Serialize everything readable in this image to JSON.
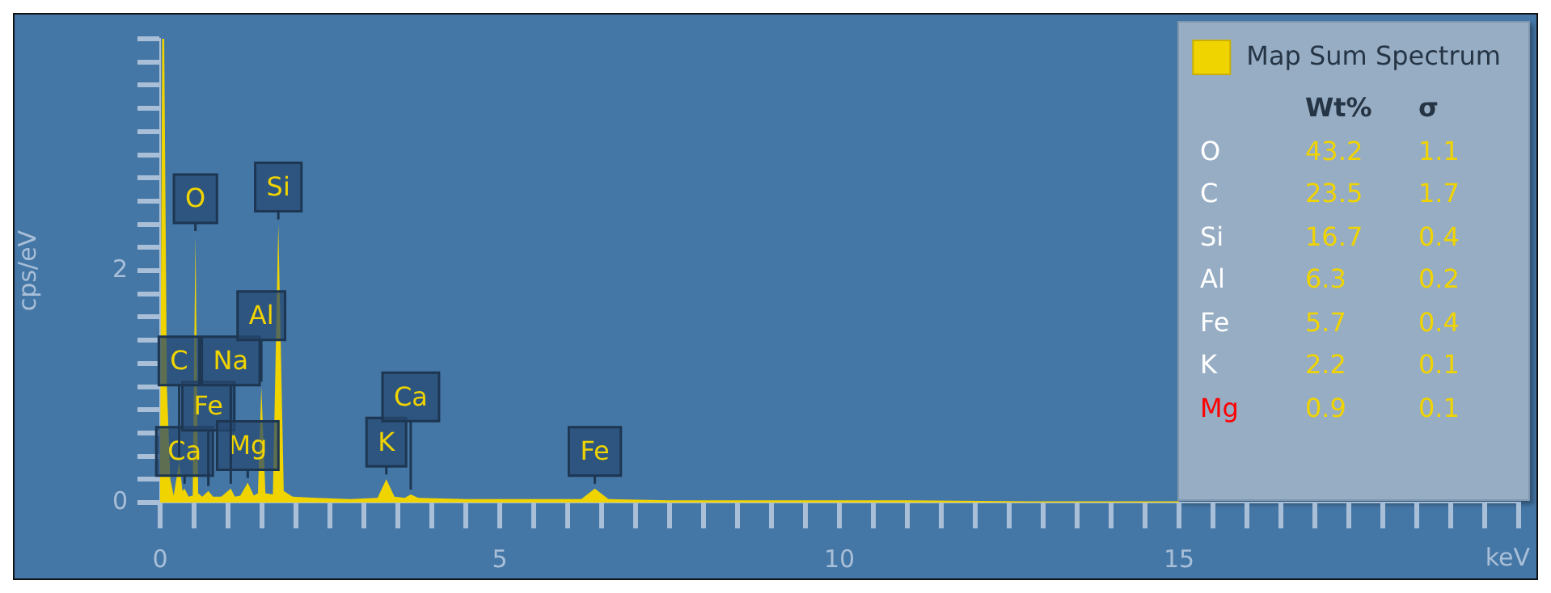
{
  "chart_data": [
    {
      "type": "area",
      "ylabel": "cps/eV",
      "xlabel": "keV",
      "legend": "top right",
      "x": [
        0,
        0.03,
        0.06,
        0.1,
        0.15,
        0.2,
        0.28,
        0.33,
        0.36,
        0.42,
        0.48,
        0.52,
        0.56,
        0.62,
        0.71,
        0.78,
        0.9,
        1.04,
        1.1,
        1.18,
        1.29,
        1.38,
        1.44,
        1.49,
        1.55,
        1.66,
        1.74,
        1.82,
        1.95,
        2.3,
        2.8,
        3.2,
        3.33,
        3.45,
        3.6,
        3.69,
        3.8,
        4.5,
        5.5,
        6.2,
        6.4,
        6.6,
        7.5,
        9,
        11,
        13,
        15
      ],
      "series": [
        {
          "name": "Map Sum Spectrum",
          "color": "#f0d400",
          "values": [
            0.3,
            4.0,
            4.0,
            1.0,
            0.2,
            0.06,
            0.35,
            0.1,
            0.12,
            0.05,
            0.06,
            2.3,
            0.08,
            0.05,
            0.1,
            0.05,
            0.05,
            0.12,
            0.05,
            0.06,
            0.17,
            0.06,
            0.08,
            1.0,
            0.08,
            0.07,
            2.4,
            0.1,
            0.05,
            0.04,
            0.03,
            0.04,
            0.2,
            0.05,
            0.04,
            0.07,
            0.04,
            0.03,
            0.03,
            0.03,
            0.12,
            0.03,
            0.02,
            0.02,
            0.02,
            0.01,
            0.01
          ]
        }
      ],
      "xlim": [
        0,
        20
      ],
      "xticks": [
        0,
        {
          "value": 0.5,
          "label": null
        },
        {
          "value": 1,
          "label": null
        },
        {
          "value": 1.5,
          "label": null
        },
        {
          "value": 2,
          "label": null
        },
        {
          "value": 2.5,
          "label": null
        },
        {
          "value": 3,
          "label": null
        },
        {
          "value": 3.5,
          "label": null
        },
        {
          "value": 4,
          "label": null
        },
        {
          "value": 4.5,
          "label": null
        },
        5,
        {
          "value": 5.5,
          "label": null
        },
        {
          "value": 6,
          "label": null
        },
        {
          "value": 6.5,
          "label": null
        },
        {
          "value": 7,
          "label": null
        },
        {
          "value": 7.5,
          "label": null
        },
        {
          "value": 8,
          "label": null
        },
        {
          "value": 8.5,
          "label": null
        },
        {
          "value": 9,
          "label": null
        },
        {
          "value": 9.5,
          "label": null
        },
        10,
        {
          "value": 10.5,
          "label": null
        },
        {
          "value": 11,
          "label": null
        },
        {
          "value": 11.5,
          "label": null
        },
        {
          "value": 12,
          "label": null
        },
        {
          "value": 12.5,
          "label": null
        },
        {
          "value": 13,
          "label": null
        },
        {
          "value": 13.5,
          "label": null
        },
        {
          "value": 14,
          "label": null
        },
        {
          "value": 14.5,
          "label": null
        },
        15,
        {
          "value": 15.5,
          "label": null
        },
        {
          "value": 16,
          "label": null
        },
        {
          "value": 16.5,
          "label": null
        },
        {
          "value": 17,
          "label": null
        },
        {
          "value": 17.5,
          "label": null
        },
        {
          "value": 18,
          "label": null
        },
        {
          "value": 18.5,
          "label": null
        },
        {
          "value": 19,
          "label": null
        },
        {
          "value": 19.5,
          "label": null
        },
        {
          "value": 20,
          "label": null
        }
      ],
      "ylim": [
        0,
        4
      ],
      "yticks": [
        0,
        {
          "value": 0.2,
          "label": null
        },
        {
          "value": 0.4,
          "label": null
        },
        {
          "value": 0.6,
          "label": null
        },
        {
          "value": 0.8,
          "label": null
        },
        {
          "value": 1,
          "label": null
        },
        {
          "value": 1.2,
          "label": null
        },
        {
          "value": 1.4,
          "label": null
        },
        {
          "value": 1.6,
          "label": null
        },
        {
          "value": 1.8,
          "label": null
        },
        2,
        {
          "value": 2.2,
          "label": null
        },
        {
          "value": 2.4,
          "label": null
        },
        {
          "value": 2.6,
          "label": null
        },
        {
          "value": 2.8,
          "label": null
        },
        {
          "value": 3,
          "label": null
        },
        {
          "value": 3.2,
          "label": null
        },
        {
          "value": 3.4,
          "label": null
        },
        {
          "value": 3.6,
          "label": null
        },
        {
          "value": 3.8,
          "label": null
        },
        {
          "value": 4,
          "label": null
        }
      ],
      "annotations": [
        {
          "text": "Ca",
          "x": 0.36,
          "y": 0.12
        },
        {
          "text": "Fe",
          "x": 0.71,
          "y": 0.1
        },
        {
          "text": "C",
          "x": 0.28,
          "y": 0.35
        },
        {
          "text": "Na",
          "x": 1.04,
          "y": 0.12
        },
        {
          "text": "Mg",
          "x": 1.29,
          "y": 0.17
        },
        {
          "text": "Al",
          "x": 1.49,
          "y": 1.0
        },
        {
          "text": "O",
          "x": 0.52,
          "y": 2.3
        },
        {
          "text": "Si",
          "x": 1.74,
          "y": 2.4
        },
        {
          "text": "K",
          "x": 3.33,
          "y": 0.2
        },
        {
          "text": "Ca",
          "x": 3.69,
          "y": 0.07
        },
        {
          "text": "Fe",
          "x": 6.4,
          "y": 0.12
        }
      ]
    },
    {
      "type": "other",
      "categories": [
        "O",
        "C",
        "Si",
        "Al",
        "Fe",
        "K",
        "Mg"
      ],
      "colors": [
        "#ffffff",
        "#ffffff",
        "#ffffff",
        "#ffffff",
        "#ffffff",
        "#ffffff",
        "#ff0000"
      ],
      "data_labels": true,
      "series": [
        {
          "name": "Wt%",
          "values": [
            43.2,
            23.5,
            16.7,
            6.3,
            5.7,
            2.2,
            0.9
          ]
        },
        {
          "name": "σ",
          "values": [
            1.1,
            1.7,
            0.4,
            0.2,
            0.4,
            0.1,
            0.1
          ]
        }
      ]
    }
  ]
}
